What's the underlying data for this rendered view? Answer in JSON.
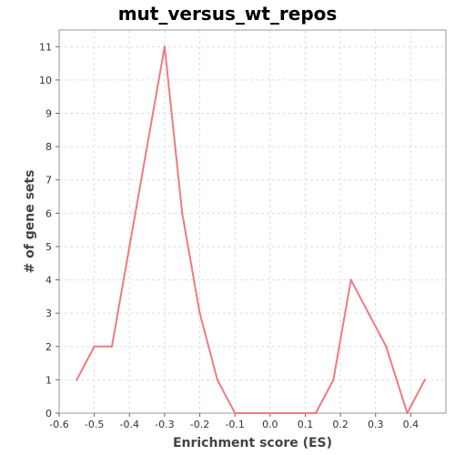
{
  "chart_data": {
    "type": "line",
    "title": "mut_versus_wt_repos",
    "xlabel": "Enrichment score (ES)",
    "ylabel": "# of gene sets",
    "xlim": [
      -0.6,
      0.5
    ],
    "ylim": [
      0,
      11.5
    ],
    "x_ticks": [
      -0.6,
      -0.5,
      -0.4,
      -0.3,
      -0.2,
      -0.1,
      0.0,
      0.1,
      0.2,
      0.3,
      0.4
    ],
    "x_tick_labels": [
      "-0.6",
      "-0.5",
      "-0.4",
      "-0.3",
      "-0.2",
      "-0.1",
      "0.0",
      "0.1",
      "0.2",
      "0.3",
      "0.4"
    ],
    "y_ticks": [
      0,
      1,
      2,
      3,
      4,
      5,
      6,
      7,
      8,
      9,
      10,
      11
    ],
    "y_tick_labels": [
      "0",
      "1",
      "2",
      "3",
      "4",
      "5",
      "6",
      "7",
      "8",
      "9",
      "10",
      "11"
    ],
    "grid": true,
    "series": [
      {
        "color": "#f07a80",
        "x": [
          -0.55,
          -0.5,
          -0.45,
          -0.4,
          -0.35,
          -0.3,
          -0.25,
          -0.2,
          -0.15,
          -0.1,
          -0.05,
          0.0,
          0.05,
          0.1,
          0.13,
          0.18,
          0.23,
          0.28,
          0.33,
          0.39,
          0.44
        ],
        "y": [
          1,
          2,
          2,
          5,
          8,
          11,
          6,
          3,
          1,
          0,
          0,
          0,
          0,
          0,
          0,
          1,
          4,
          3,
          2,
          0,
          1
        ]
      }
    ]
  }
}
